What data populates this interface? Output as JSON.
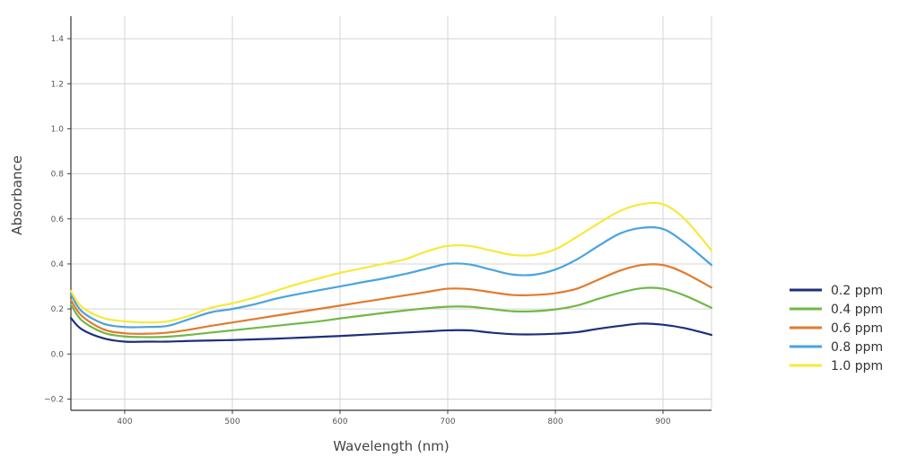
{
  "chart_data": {
    "type": "line",
    "title": "",
    "xlabel": "Wavelength (nm)",
    "ylabel": "Absorbance",
    "xlim": [
      350,
      945
    ],
    "ylim": [
      -0.25,
      1.5
    ],
    "x_ticks": [
      400,
      500,
      600,
      700,
      800,
      900
    ],
    "y_ticks": [
      -0.2,
      0.0,
      0.2,
      0.4,
      0.6,
      0.8,
      1.0,
      1.2,
      1.4
    ],
    "y_tick_labels": [
      "−0.2",
      "0.0",
      "0.2",
      "0.4",
      "0.6",
      "0.8",
      "1.0",
      "1.2",
      "1.4"
    ],
    "grid": true,
    "legend_position": "right",
    "x": [
      350,
      360,
      380,
      400,
      420,
      440,
      460,
      480,
      500,
      520,
      540,
      560,
      580,
      600,
      620,
      640,
      660,
      680,
      700,
      720,
      740,
      760,
      780,
      800,
      820,
      840,
      860,
      880,
      900,
      920,
      945
    ],
    "series": [
      {
        "name": "0.2 ppm",
        "color": "#1f2f7a",
        "values": [
          0.16,
          0.11,
          0.07,
          0.055,
          0.055,
          0.055,
          0.058,
          0.06,
          0.062,
          0.065,
          0.068,
          0.072,
          0.076,
          0.08,
          0.085,
          0.09,
          0.095,
          0.1,
          0.105,
          0.105,
          0.095,
          0.088,
          0.087,
          0.09,
          0.097,
          0.112,
          0.125,
          0.135,
          0.13,
          0.115,
          0.085
        ]
      },
      {
        "name": "0.4 ppm",
        "color": "#72b844",
        "values": [
          0.22,
          0.15,
          0.095,
          0.078,
          0.075,
          0.077,
          0.085,
          0.095,
          0.105,
          0.115,
          0.125,
          0.135,
          0.145,
          0.158,
          0.17,
          0.182,
          0.193,
          0.203,
          0.21,
          0.21,
          0.2,
          0.19,
          0.19,
          0.198,
          0.215,
          0.245,
          0.272,
          0.292,
          0.29,
          0.26,
          0.205
        ]
      },
      {
        "name": "0.6 ppm",
        "color": "#e07b2e",
        "values": [
          0.24,
          0.17,
          0.11,
          0.092,
          0.09,
          0.095,
          0.108,
          0.125,
          0.14,
          0.155,
          0.17,
          0.185,
          0.2,
          0.215,
          0.23,
          0.245,
          0.26,
          0.275,
          0.29,
          0.288,
          0.275,
          0.262,
          0.262,
          0.27,
          0.29,
          0.33,
          0.37,
          0.395,
          0.395,
          0.36,
          0.295
        ]
      },
      {
        "name": "0.8 ppm",
        "color": "#4aa3e0",
        "values": [
          0.265,
          0.19,
          0.135,
          0.12,
          0.12,
          0.125,
          0.155,
          0.185,
          0.2,
          0.22,
          0.245,
          0.265,
          0.283,
          0.3,
          0.318,
          0.335,
          0.355,
          0.378,
          0.4,
          0.398,
          0.375,
          0.353,
          0.352,
          0.375,
          0.42,
          0.48,
          0.535,
          0.56,
          0.555,
          0.495,
          0.395
        ]
      },
      {
        "name": "1.0 ppm",
        "color": "#f7e93a",
        "values": [
          0.28,
          0.21,
          0.16,
          0.145,
          0.14,
          0.145,
          0.17,
          0.205,
          0.225,
          0.25,
          0.28,
          0.31,
          0.335,
          0.36,
          0.38,
          0.4,
          0.42,
          0.455,
          0.48,
          0.48,
          0.46,
          0.44,
          0.44,
          0.465,
          0.52,
          0.58,
          0.635,
          0.665,
          0.665,
          0.6,
          0.46
        ]
      }
    ]
  }
}
